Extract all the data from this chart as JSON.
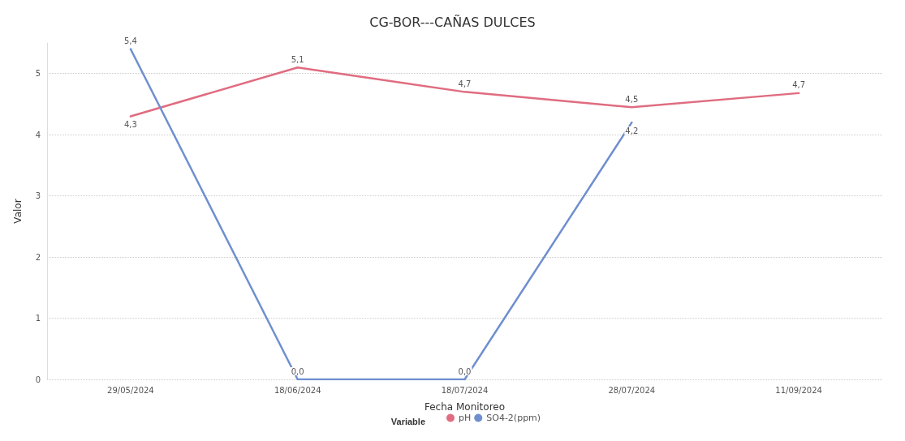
{
  "chart_data": {
    "type": "line",
    "title": "CG-BOR---CAÑAS DULCES",
    "xlabel": "Fecha Monitoreo",
    "ylabel": "Valor",
    "legend_title": "Variable",
    "categories": [
      "29/05/2024",
      "18/06/2024",
      "18/07/2024",
      "28/07/2024",
      "11/09/2024"
    ],
    "series": [
      {
        "name": "pH",
        "color": "#e06c80",
        "values": [
          4.3,
          5.1,
          4.7,
          4.45,
          4.68
        ],
        "value_labels": [
          "4,3",
          "5,1",
          "4,7",
          "4,5",
          "4,7"
        ]
      },
      {
        "name": "SO4-2(ppm)",
        "color": "#6f8fcf",
        "values": [
          5.4,
          0,
          0,
          4.2,
          null
        ],
        "value_labels": [
          "5,4",
          "0,0",
          "0,0",
          "4,2",
          null
        ]
      }
    ],
    "ylim": [
      0,
      5.5
    ],
    "yticks": [
      0,
      1,
      2,
      3,
      4,
      5
    ],
    "grid": "y",
    "legend": "bottom",
    "marker": "none",
    "line_style": "solid"
  }
}
